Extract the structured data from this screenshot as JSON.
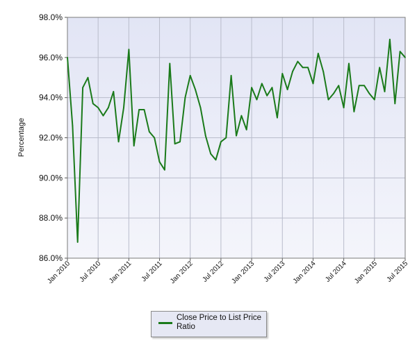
{
  "chart_data": {
    "type": "line",
    "title": "",
    "ylabel": "Percentage",
    "xlabel": "",
    "ylim": [
      86.0,
      98.0
    ],
    "yticks": [
      86.0,
      88.0,
      90.0,
      92.0,
      94.0,
      96.0,
      98.0
    ],
    "ytick_labels": [
      "86.0%",
      "88.0%",
      "90.0%",
      "92.0%",
      "94.0%",
      "96.0%",
      "98.0%"
    ],
    "xtick_labels": [
      "Jan 2010",
      "Jul 2010",
      "Jan 2011",
      "Jul 2011",
      "Jan 2012",
      "Jul 2012",
      "Jan 2013",
      "Jul 2013",
      "Jan 2014",
      "Jul 2014",
      "Jan 2015",
      "Jul 2015"
    ],
    "x": [
      "2010-01",
      "2010-02",
      "2010-03",
      "2010-04",
      "2010-05",
      "2010-06",
      "2010-07",
      "2010-08",
      "2010-09",
      "2010-10",
      "2010-11",
      "2010-12",
      "2011-01",
      "2011-02",
      "2011-03",
      "2011-04",
      "2011-05",
      "2011-06",
      "2011-07",
      "2011-08",
      "2011-09",
      "2011-10",
      "2011-11",
      "2011-12",
      "2012-01",
      "2012-02",
      "2012-03",
      "2012-04",
      "2012-05",
      "2012-06",
      "2012-07",
      "2012-08",
      "2012-09",
      "2012-10",
      "2012-11",
      "2012-12",
      "2013-01",
      "2013-02",
      "2013-03",
      "2013-04",
      "2013-05",
      "2013-06",
      "2013-07",
      "2013-08",
      "2013-09",
      "2013-10",
      "2013-11",
      "2013-12",
      "2014-01",
      "2014-02",
      "2014-03",
      "2014-04",
      "2014-05",
      "2014-06",
      "2014-07",
      "2014-08",
      "2014-09",
      "2014-10",
      "2014-11",
      "2014-12",
      "2015-01",
      "2015-02",
      "2015-03",
      "2015-04",
      "2015-05",
      "2015-06",
      "2015-07"
    ],
    "series": [
      {
        "name": "Close Price to List Price Ratio",
        "color": "#1a7a1a",
        "values": [
          96.0,
          92.6,
          86.8,
          94.5,
          95.0,
          93.7,
          93.5,
          93.1,
          93.5,
          94.3,
          91.8,
          93.5,
          96.4,
          91.6,
          93.4,
          93.4,
          92.3,
          92.0,
          90.8,
          90.4,
          95.7,
          91.7,
          91.8,
          94.0,
          95.1,
          94.4,
          93.5,
          92.1,
          91.2,
          90.9,
          91.8,
          92.0,
          95.1,
          92.1,
          93.1,
          92.4,
          94.5,
          93.9,
          94.7,
          94.1,
          94.5,
          93.0,
          95.2,
          94.4,
          95.3,
          95.8,
          95.5,
          95.5,
          94.7,
          96.2,
          95.3,
          93.9,
          94.2,
          94.6,
          93.5,
          95.7,
          93.3,
          94.6,
          94.6,
          94.2,
          93.9,
          95.5,
          94.3,
          96.9,
          93.7,
          96.3,
          96.0
        ]
      }
    ],
    "grid": true,
    "legend": "bottom-center",
    "plot_background": "#eceef8"
  },
  "legend": {
    "label": "Close Price to List Price Ratio",
    "color": "#1a7a1a"
  }
}
